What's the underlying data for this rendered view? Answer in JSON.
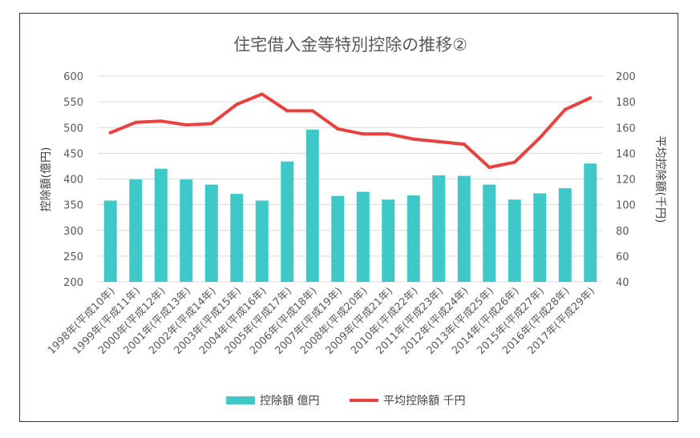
{
  "chart_data": {
    "type": "bar+line",
    "title": "住宅借入金等特別控除の推移②",
    "categories": [
      "1998年(平成10年)",
      "1999年(平成11年)",
      "2000年(平成12年)",
      "2001年(平成13年)",
      "2002年(平成14年)",
      "2003年(平成15年)",
      "2004年(平成16年)",
      "2005年(平成17年)",
      "2006年(平成18年)",
      "2007年(平成19年)",
      "2008年(平成20年)",
      "2009年(平成21年)",
      "2010年(平成22年)",
      "2011年(平成23年)",
      "2012年(平成24年)",
      "2013年(平成25年)",
      "2014年(平成26年)",
      "2015年(平成27年)",
      "2016年(平成28年)",
      "2017年(平成29年)"
    ],
    "y_left": {
      "label": "控除額(億円)",
      "ylim": [
        200,
        600
      ],
      "ticks": [
        "200",
        "250",
        "300",
        "350",
        "400",
        "450",
        "500",
        "550",
        "600"
      ]
    },
    "y_right": {
      "label": "平均控除額(千円)",
      "ylim": [
        40,
        200
      ],
      "ticks": [
        "40",
        "60",
        "80",
        "100",
        "120",
        "140",
        "160",
        "180",
        "200"
      ]
    },
    "series": [
      {
        "name": "控除額 億円",
        "type": "bar",
        "axis": "left",
        "color": "#3ec8c8",
        "values": [
          358,
          399,
          420,
          399,
          389,
          371,
          358,
          434,
          496,
          367,
          375,
          360,
          368,
          407,
          406,
          389,
          360,
          372,
          382,
          430
        ]
      },
      {
        "name": "平均控除額 千円",
        "type": "line",
        "axis": "right",
        "color": "#e8413e",
        "values": [
          156,
          164,
          165,
          162,
          163,
          178,
          186,
          173,
          173,
          159,
          155,
          155,
          151,
          149,
          147,
          129,
          133,
          152,
          174,
          183
        ]
      }
    ],
    "grid": true,
    "legend_position": "bottom"
  }
}
